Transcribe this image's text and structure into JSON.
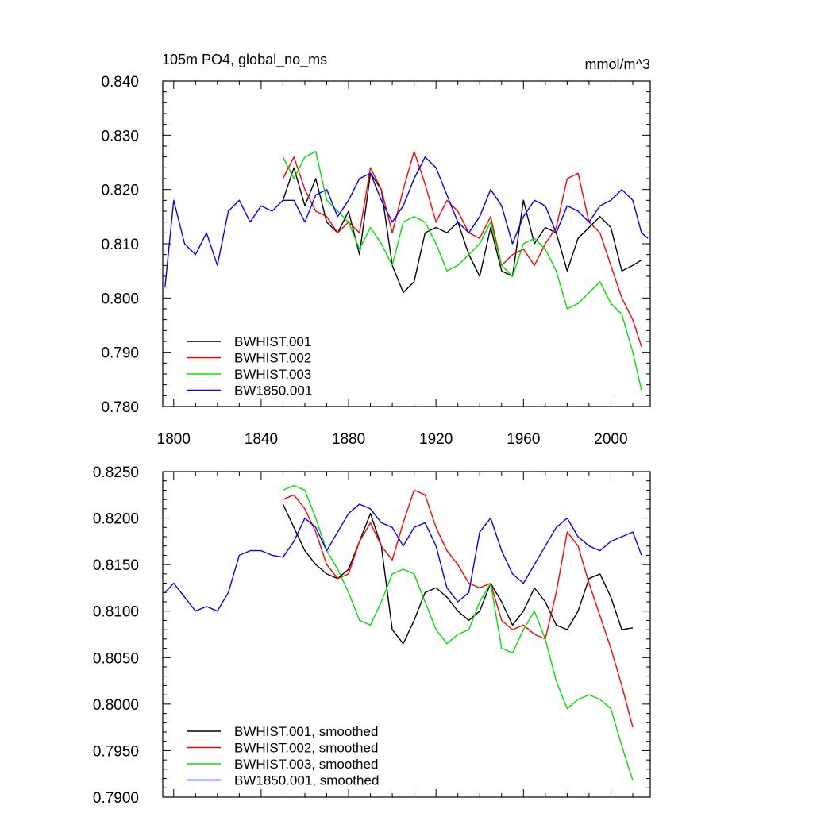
{
  "chart_data": [
    {
      "type": "line",
      "title": "105m PO4, global_no_ms",
      "units": "mmol/m^3",
      "xlim": [
        1795,
        2018
      ],
      "ylim": [
        0.78,
        0.84
      ],
      "xticks": [
        1800,
        1840,
        1880,
        1920,
        1960,
        2000
      ],
      "xticklabels": [
        "1800",
        "1840",
        "1880",
        "1920",
        "1960",
        "2000"
      ],
      "yticks": [
        0.78,
        0.79,
        0.8,
        0.81,
        0.82,
        0.83,
        0.84
      ],
      "yticklabels": [
        "0.780",
        "0.790",
        "0.800",
        "0.810",
        "0.820",
        "0.830",
        "0.840"
      ],
      "legend_position": "bottom-left",
      "series": [
        {
          "name": "BWHIST.001",
          "color": "#000000",
          "x": [
            1850,
            1855,
            1860,
            1865,
            1870,
            1875,
            1880,
            1885,
            1890,
            1895,
            1900,
            1905,
            1910,
            1915,
            1920,
            1925,
            1930,
            1935,
            1940,
            1945,
            1950,
            1955,
            1960,
            1965,
            1970,
            1975,
            1980,
            1985,
            1990,
            1995,
            2000,
            2005,
            2010,
            2014
          ],
          "values": [
            0.818,
            0.824,
            0.817,
            0.822,
            0.814,
            0.812,
            0.816,
            0.808,
            0.823,
            0.82,
            0.806,
            0.801,
            0.803,
            0.812,
            0.813,
            0.812,
            0.814,
            0.808,
            0.804,
            0.813,
            0.805,
            0.804,
            0.818,
            0.81,
            0.813,
            0.812,
            0.805,
            0.811,
            0.813,
            0.815,
            0.813,
            0.805,
            0.806,
            0.807
          ]
        },
        {
          "name": "BWHIST.002",
          "color": "#ff0000",
          "x": [
            1850,
            1855,
            1860,
            1865,
            1870,
            1875,
            1880,
            1885,
            1890,
            1895,
            1900,
            1905,
            1910,
            1915,
            1920,
            1925,
            1930,
            1935,
            1940,
            1945,
            1950,
            1955,
            1960,
            1965,
            1970,
            1975,
            1980,
            1985,
            1990,
            1995,
            2000,
            2005,
            2010,
            2014
          ],
          "values": [
            0.822,
            0.826,
            0.82,
            0.816,
            0.815,
            0.812,
            0.814,
            0.812,
            0.824,
            0.82,
            0.812,
            0.82,
            0.827,
            0.821,
            0.814,
            0.818,
            0.816,
            0.812,
            0.811,
            0.815,
            0.806,
            0.808,
            0.809,
            0.806,
            0.81,
            0.813,
            0.822,
            0.823,
            0.814,
            0.812,
            0.806,
            0.8,
            0.796,
            0.791
          ]
        },
        {
          "name": "BWHIST.003",
          "color": "#00e000",
          "x": [
            1850,
            1855,
            1860,
            1865,
            1870,
            1875,
            1880,
            1885,
            1890,
            1895,
            1900,
            1905,
            1910,
            1915,
            1920,
            1925,
            1930,
            1935,
            1940,
            1945,
            1950,
            1955,
            1960,
            1965,
            1970,
            1975,
            1980,
            1985,
            1990,
            1995,
            2000,
            2005,
            2010,
            2014
          ],
          "values": [
            0.826,
            0.822,
            0.826,
            0.827,
            0.818,
            0.816,
            0.814,
            0.809,
            0.813,
            0.81,
            0.806,
            0.814,
            0.815,
            0.814,
            0.81,
            0.805,
            0.806,
            0.808,
            0.81,
            0.814,
            0.806,
            0.804,
            0.81,
            0.811,
            0.809,
            0.805,
            0.798,
            0.799,
            0.801,
            0.803,
            0.799,
            0.797,
            0.79,
            0.783
          ]
        },
        {
          "name": "BW1850.001",
          "color": "#0000ff",
          "x": [
            1796,
            1800,
            1805,
            1810,
            1815,
            1820,
            1825,
            1830,
            1835,
            1840,
            1845,
            1850,
            1855,
            1860,
            1865,
            1870,
            1875,
            1880,
            1885,
            1890,
            1895,
            1900,
            1905,
            1910,
            1915,
            1920,
            1925,
            1930,
            1935,
            1940,
            1945,
            1950,
            1955,
            1960,
            1965,
            1970,
            1975,
            1980,
            1985,
            1990,
            1995,
            2000,
            2005,
            2010,
            2014,
            2017
          ],
          "values": [
            0.802,
            0.818,
            0.81,
            0.808,
            0.812,
            0.806,
            0.816,
            0.818,
            0.814,
            0.817,
            0.816,
            0.818,
            0.818,
            0.814,
            0.819,
            0.82,
            0.815,
            0.818,
            0.822,
            0.823,
            0.818,
            0.814,
            0.817,
            0.822,
            0.826,
            0.824,
            0.819,
            0.814,
            0.812,
            0.815,
            0.82,
            0.817,
            0.81,
            0.815,
            0.818,
            0.817,
            0.812,
            0.817,
            0.816,
            0.814,
            0.817,
            0.818,
            0.82,
            0.818,
            0.812,
            0.811
          ]
        }
      ]
    },
    {
      "type": "line",
      "title": "",
      "xlim": [
        1795,
        2018
      ],
      "ylim": [
        0.79,
        0.825
      ],
      "xticks": [
        1800,
        1840,
        1880,
        1920,
        1960,
        2000
      ],
      "yticks": [
        0.79,
        0.795,
        0.8,
        0.805,
        0.81,
        0.815,
        0.82,
        0.825
      ],
      "yticklabels": [
        "0.7900",
        "0.7950",
        "0.8000",
        "0.8050",
        "0.8100",
        "0.8150",
        "0.8200",
        "0.8250"
      ],
      "legend_position": "bottom-left",
      "series": [
        {
          "name": "BWHIST.001, smoothed",
          "color": "#000000",
          "x": [
            1850,
            1855,
            1860,
            1865,
            1870,
            1875,
            1880,
            1885,
            1890,
            1895,
            1900,
            1905,
            1910,
            1915,
            1920,
            1925,
            1930,
            1935,
            1940,
            1945,
            1950,
            1955,
            1960,
            1965,
            1970,
            1975,
            1980,
            1985,
            1990,
            1995,
            2000,
            2005,
            2010
          ],
          "values": [
            0.8215,
            0.819,
            0.8165,
            0.815,
            0.814,
            0.8135,
            0.8145,
            0.8175,
            0.8205,
            0.817,
            0.808,
            0.8065,
            0.809,
            0.812,
            0.8125,
            0.8115,
            0.81,
            0.809,
            0.81,
            0.813,
            0.811,
            0.8085,
            0.81,
            0.8125,
            0.811,
            0.8085,
            0.808,
            0.81,
            0.8135,
            0.814,
            0.8115,
            0.808,
            0.8082
          ]
        },
        {
          "name": "BWHIST.002, smoothed",
          "color": "#ff0000",
          "x": [
            1850,
            1855,
            1860,
            1865,
            1870,
            1875,
            1880,
            1885,
            1890,
            1895,
            1900,
            1905,
            1910,
            1915,
            1920,
            1925,
            1930,
            1935,
            1940,
            1945,
            1950,
            1955,
            1960,
            1965,
            1970,
            1975,
            1980,
            1985,
            1990,
            1995,
            2000,
            2005,
            2010
          ],
          "values": [
            0.822,
            0.8225,
            0.821,
            0.8185,
            0.815,
            0.8135,
            0.814,
            0.8175,
            0.8195,
            0.817,
            0.8155,
            0.8195,
            0.823,
            0.8225,
            0.819,
            0.8165,
            0.815,
            0.813,
            0.8125,
            0.813,
            0.809,
            0.808,
            0.8085,
            0.8075,
            0.807,
            0.812,
            0.8185,
            0.817,
            0.813,
            0.8095,
            0.806,
            0.802,
            0.7975
          ]
        },
        {
          "name": "BWHIST.003, smoothed",
          "color": "#00e000",
          "x": [
            1850,
            1855,
            1860,
            1865,
            1870,
            1875,
            1880,
            1885,
            1890,
            1895,
            1900,
            1905,
            1910,
            1915,
            1920,
            1925,
            1930,
            1935,
            1940,
            1945,
            1950,
            1955,
            1960,
            1965,
            1970,
            1975,
            1980,
            1985,
            1990,
            1995,
            2000,
            2005,
            2010
          ],
          "values": [
            0.823,
            0.8235,
            0.823,
            0.82,
            0.8165,
            0.8145,
            0.812,
            0.809,
            0.8085,
            0.811,
            0.814,
            0.8145,
            0.814,
            0.811,
            0.808,
            0.8065,
            0.8075,
            0.808,
            0.811,
            0.813,
            0.806,
            0.8055,
            0.808,
            0.81,
            0.807,
            0.8025,
            0.7995,
            0.8005,
            0.801,
            0.8005,
            0.7995,
            0.7955,
            0.7918
          ]
        },
        {
          "name": "BW1850.001, smoothed",
          "color": "#0000ff",
          "x": [
            1796,
            1800,
            1805,
            1810,
            1815,
            1820,
            1825,
            1830,
            1835,
            1840,
            1845,
            1850,
            1855,
            1860,
            1865,
            1870,
            1875,
            1880,
            1885,
            1890,
            1895,
            1900,
            1905,
            1910,
            1915,
            1920,
            1925,
            1930,
            1935,
            1940,
            1945,
            1950,
            1955,
            1960,
            1965,
            1970,
            1975,
            1980,
            1985,
            1990,
            1995,
            2000,
            2005,
            2010,
            2014
          ],
          "values": [
            0.812,
            0.813,
            0.8115,
            0.81,
            0.8105,
            0.81,
            0.812,
            0.816,
            0.8165,
            0.8165,
            0.816,
            0.8158,
            0.8175,
            0.82,
            0.819,
            0.8165,
            0.8185,
            0.8205,
            0.8215,
            0.821,
            0.8195,
            0.819,
            0.817,
            0.819,
            0.8195,
            0.817,
            0.8125,
            0.811,
            0.812,
            0.8185,
            0.82,
            0.8165,
            0.814,
            0.813,
            0.815,
            0.817,
            0.819,
            0.82,
            0.818,
            0.817,
            0.8165,
            0.8175,
            0.818,
            0.8185,
            0.816
          ]
        }
      ]
    }
  ]
}
